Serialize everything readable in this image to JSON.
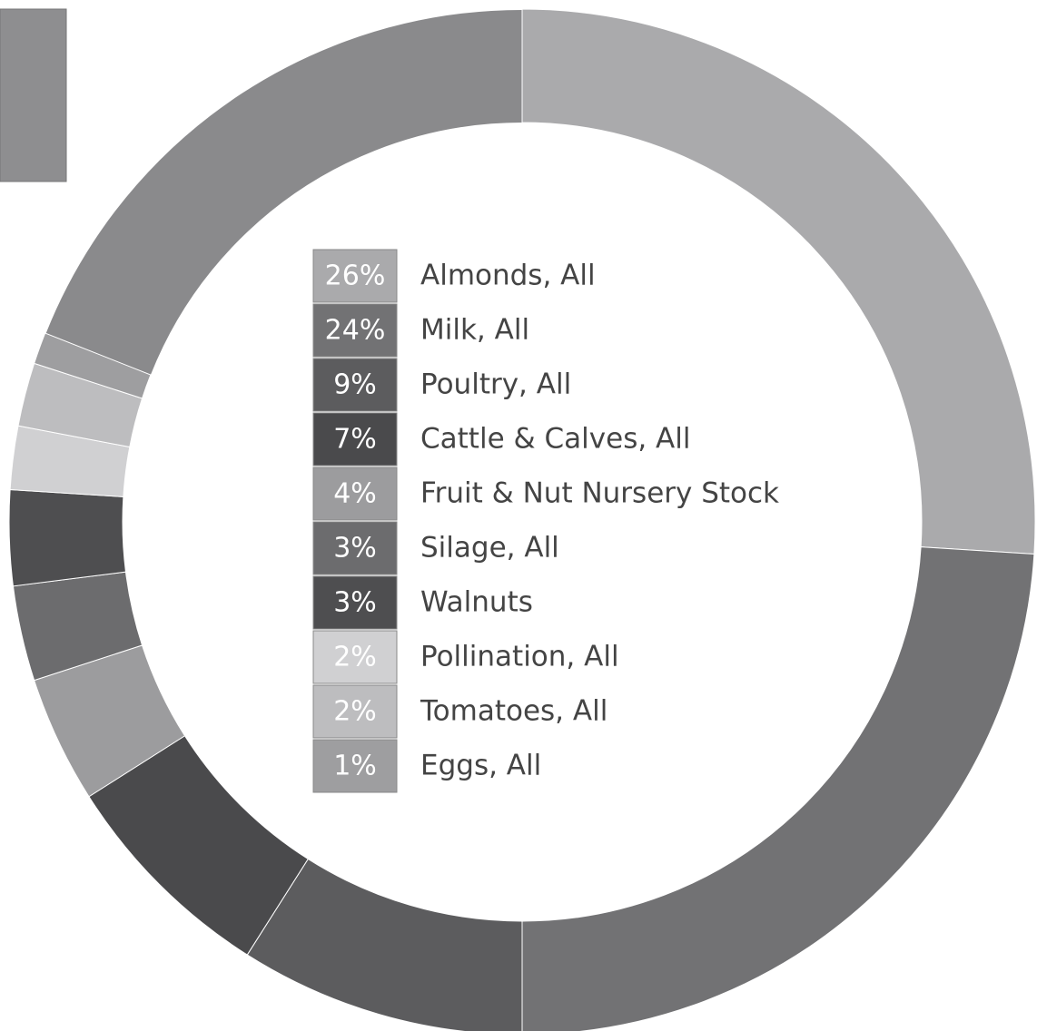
{
  "chart_data": {
    "type": "donut",
    "categories": [
      "Almonds, All",
      "Milk, All",
      "Poultry, All",
      "Cattle & Calves, All",
      "Fruit & Nut Nursery Stock",
      "Silage, All",
      "Walnuts",
      "Pollination, All",
      "Tomatoes, All",
      "Eggs, All"
    ],
    "values": [
      26,
      24,
      9,
      7,
      4,
      3,
      3,
      2,
      2,
      1
    ],
    "value_labels": [
      "26%",
      "24%",
      "9%",
      "7%",
      "4%",
      "3%",
      "3%",
      "2%",
      "2%",
      "1%"
    ],
    "colors": [
      "#aaaaac",
      "#727274",
      "#5c5c5e",
      "#4a4a4c",
      "#9c9c9e",
      "#6c6c6e",
      "#4e4e50",
      "#d0d0d2",
      "#bdbdbf",
      "#9e9ea0"
    ]
  }
}
